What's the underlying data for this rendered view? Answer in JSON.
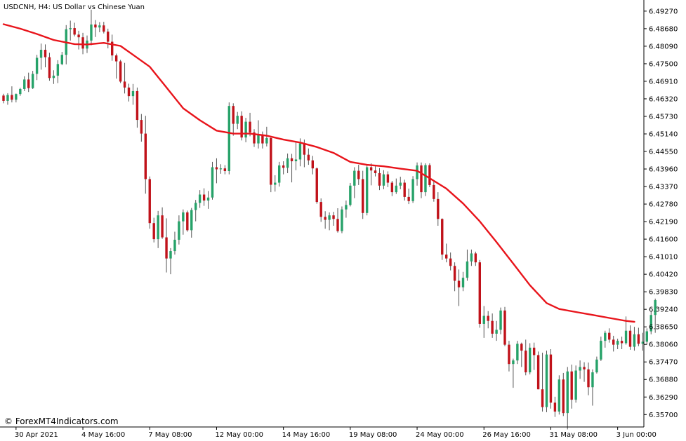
{
  "chart_data": {
    "type": "candlestick",
    "symbol_label": "USDCNH, H4:  US Dollar vs Chinese Yuan",
    "watermark": "© ForexMT4Indicators.com",
    "colors": {
      "bull": "#26a269",
      "bear": "#c0121a",
      "ma": "#e8141b",
      "wick": "#555555",
      "axis": "#000000"
    },
    "ylim": [
      6.354,
      6.4955
    ],
    "y_ticks": [
      "6.49270",
      "6.48680",
      "6.48090",
      "6.47500",
      "6.46910",
      "6.46320",
      "6.45730",
      "6.45140",
      "6.44550",
      "6.43960",
      "6.43370",
      "6.42780",
      "6.42190",
      "6.41600",
      "6.41010",
      "6.40420",
      "6.39830",
      "6.39240",
      "6.38650",
      "6.38060",
      "6.37470",
      "6.36880",
      "6.36290",
      "6.35700"
    ],
    "x_labels": [
      {
        "label": "30 Apr 2021",
        "index": 3
      },
      {
        "label": "4 May 16:00",
        "index": 19
      },
      {
        "label": "7 May 08:00",
        "index": 35
      },
      {
        "label": "12 May 00:00",
        "index": 51
      },
      {
        "label": "14 May 16:00",
        "index": 67
      },
      {
        "label": "19 May 08:00",
        "index": 83
      },
      {
        "label": "24 May 00:00",
        "index": 99
      },
      {
        "label": "26 May 16:00",
        "index": 115
      },
      {
        "label": "31 May 08:00",
        "index": 131
      },
      {
        "label": "3 Jun 00:00",
        "index": 147
      }
    ],
    "candles": [
      [
        6.4643,
        6.4649,
        6.4617,
        6.4625
      ],
      [
        6.4625,
        6.4651,
        6.4612,
        6.4645
      ],
      [
        6.4645,
        6.4674,
        6.462,
        6.4629
      ],
      [
        6.4629,
        6.465,
        6.462,
        6.4648
      ],
      [
        6.4648,
        6.4669,
        6.4642,
        6.4665
      ],
      [
        6.4665,
        6.4708,
        6.4658,
        6.4697
      ],
      [
        6.4697,
        6.472,
        6.4655,
        6.4668
      ],
      [
        6.4668,
        6.4726,
        6.4665,
        6.4716
      ],
      [
        6.4716,
        6.478,
        6.4695,
        6.477
      ],
      [
        6.477,
        6.4818,
        6.473,
        6.4797
      ],
      [
        6.4797,
        6.4815,
        6.4738,
        6.4772
      ],
      [
        6.4772,
        6.4787,
        6.4693,
        6.4702
      ],
      [
        6.4702,
        6.4728,
        6.4682,
        6.471
      ],
      [
        6.471,
        6.4762,
        6.4685,
        6.4749
      ],
      [
        6.4749,
        6.479,
        6.4745,
        6.478
      ],
      [
        6.478,
        6.488,
        6.4748,
        6.4866
      ],
      [
        6.4866,
        6.4895,
        6.4828,
        6.487
      ],
      [
        6.487,
        6.4888,
        6.4842,
        6.4848
      ],
      [
        6.4848,
        6.4861,
        6.4798,
        6.4839
      ],
      [
        6.4839,
        6.4854,
        6.4782,
        6.4801
      ],
      [
        6.4801,
        6.4845,
        6.4786,
        6.4828
      ],
      [
        6.4828,
        6.4932,
        6.4812,
        6.4882
      ],
      [
        6.4882,
        6.4897,
        6.484,
        6.4872
      ],
      [
        6.4872,
        6.489,
        6.4856,
        6.4879
      ],
      [
        6.4879,
        6.4891,
        6.4852,
        6.4858
      ],
      [
        6.4858,
        6.4868,
        6.4802,
        6.4824
      ],
      [
        6.4824,
        6.4848,
        6.476,
        6.4778
      ],
      [
        6.4778,
        6.4784,
        6.47,
        6.4758
      ],
      [
        6.4758,
        6.4763,
        6.4685,
        6.469
      ],
      [
        6.469,
        6.4753,
        6.465,
        6.467
      ],
      [
        6.467,
        6.4683,
        6.4623,
        6.4641
      ],
      [
        6.4641,
        6.4682,
        6.4612,
        6.4658
      ],
      [
        6.4658,
        6.467,
        6.4535,
        6.4561
      ],
      [
        6.4561,
        6.4581,
        6.4488,
        6.4515
      ],
      [
        6.4515,
        6.4575,
        6.4313,
        6.4362
      ],
      [
        6.4362,
        6.4371,
        6.4195,
        6.4214
      ],
      [
        6.4214,
        6.4232,
        6.4149,
        6.416
      ],
      [
        6.416,
        6.4255,
        6.413,
        6.424
      ],
      [
        6.424,
        6.4267,
        6.4161,
        6.4166
      ],
      [
        6.4166,
        6.423,
        6.4048,
        6.4095
      ],
      [
        6.4095,
        6.413,
        6.4042,
        6.412
      ],
      [
        6.412,
        6.4185,
        6.4108,
        6.4158
      ],
      [
        6.4158,
        6.424,
        6.4142,
        6.422
      ],
      [
        6.422,
        6.426,
        6.4175,
        6.425
      ],
      [
        6.425,
        6.4256,
        6.4185,
        6.419
      ],
      [
        6.419,
        6.4265,
        6.4165,
        6.4258
      ],
      [
        6.4258,
        6.4292,
        6.422,
        6.4282
      ],
      [
        6.4282,
        6.4325,
        6.4265,
        6.431
      ],
      [
        6.431,
        6.4331,
        6.4272,
        6.429
      ],
      [
        6.429,
        6.4322,
        6.4262,
        6.43
      ],
      [
        6.43,
        6.442,
        6.4293,
        6.4402
      ],
      [
        6.4402,
        6.4432,
        6.4348,
        6.4395
      ],
      [
        6.4395,
        6.4412,
        6.438,
        6.4398
      ],
      [
        6.4398,
        6.4409,
        6.4378,
        6.4389
      ],
      [
        6.4389,
        6.462,
        6.4378,
        6.4608
      ],
      [
        6.4608,
        6.4617,
        6.4508,
        6.4548
      ],
      [
        6.4548,
        6.4588,
        6.453,
        6.4575
      ],
      [
        6.4575,
        6.459,
        6.4492,
        6.4502
      ],
      [
        6.4502,
        6.4568,
        6.4486,
        6.4555
      ],
      [
        6.4555,
        6.4585,
        6.4506,
        6.4519
      ],
      [
        6.4519,
        6.453,
        6.447,
        6.4482
      ],
      [
        6.4482,
        6.456,
        6.4465,
        6.451
      ],
      [
        6.451,
        6.4522,
        6.4465,
        6.4482
      ],
      [
        6.4482,
        6.4538,
        6.4472,
        6.45
      ],
      [
        6.45,
        6.4502,
        6.4318,
        6.4343
      ],
      [
        6.4343,
        6.4375,
        6.432,
        6.435
      ],
      [
        6.435,
        6.442,
        6.4337,
        6.4408
      ],
      [
        6.4408,
        6.4422,
        6.4378,
        6.44
      ],
      [
        6.44,
        6.4448,
        6.4382,
        6.4432
      ],
      [
        6.4432,
        6.4447,
        6.4351,
        6.4422
      ],
      [
        6.4422,
        6.4488,
        6.4392,
        6.4428
      ],
      [
        6.4428,
        6.4499,
        6.4405,
        6.4482
      ],
      [
        6.4482,
        6.4495,
        6.4402,
        6.4444
      ],
      [
        6.4444,
        6.4465,
        6.441,
        6.4425
      ],
      [
        6.4425,
        6.444,
        6.4378,
        6.4398
      ],
      [
        6.4398,
        6.4401,
        6.4279,
        6.4285
      ],
      [
        6.4285,
        6.4297,
        6.4218,
        6.4235
      ],
      [
        6.4235,
        6.4254,
        6.4195,
        6.4225
      ],
      [
        6.4225,
        6.425,
        6.419,
        6.424
      ],
      [
        6.424,
        6.4252,
        6.4205,
        6.4228
      ],
      [
        6.4228,
        6.4264,
        6.4182,
        6.4187
      ],
      [
        6.4187,
        6.427,
        6.418,
        6.426
      ],
      [
        6.426,
        6.429,
        6.4232,
        6.4275
      ],
      [
        6.4275,
        6.4349,
        6.427,
        6.434
      ],
      [
        6.434,
        6.4402,
        6.4298,
        6.439
      ],
      [
        6.439,
        6.441,
        6.4342,
        6.4362
      ],
      [
        6.4362,
        6.439,
        6.4228,
        6.4248
      ],
      [
        6.4248,
        6.4412,
        6.424,
        6.4402
      ],
      [
        6.4402,
        6.4415,
        6.4341,
        6.4391
      ],
      [
        6.4391,
        6.4405,
        6.4371,
        6.4382
      ],
      [
        6.4382,
        6.4399,
        6.4325,
        6.434
      ],
      [
        6.434,
        6.4392,
        6.4328,
        6.4378
      ],
      [
        6.4378,
        6.4388,
        6.4335,
        6.435
      ],
      [
        6.435,
        6.4356,
        6.4305,
        6.4318
      ],
      [
        6.4318,
        6.4364,
        6.4312,
        6.434
      ],
      [
        6.434,
        6.437,
        6.4328,
        6.435
      ],
      [
        6.435,
        6.436,
        6.429,
        6.4302
      ],
      [
        6.4302,
        6.433,
        6.4278,
        6.4288
      ],
      [
        6.4288,
        6.4372,
        6.4282,
        6.4362
      ],
      [
        6.4362,
        6.4418,
        6.434,
        6.4408
      ],
      [
        6.4408,
        6.4418,
        6.4298,
        6.4318
      ],
      [
        6.4318,
        6.4415,
        6.4305,
        6.4409
      ],
      [
        6.4409,
        6.4415,
        6.4335,
        6.4342
      ],
      [
        6.4342,
        6.4358,
        6.4286,
        6.4295
      ],
      [
        6.4295,
        6.4318,
        6.4205,
        6.4228
      ],
      [
        6.4228,
        6.423,
        6.409,
        6.4108
      ],
      [
        6.4108,
        6.4145,
        6.4082,
        6.4095
      ],
      [
        6.4095,
        6.4115,
        6.4055,
        6.407
      ],
      [
        6.407,
        6.4082,
        6.3985,
        6.402
      ],
      [
        6.402,
        6.4058,
        6.3935,
        6.3998
      ],
      [
        6.3998,
        6.405,
        6.3985,
        6.403
      ],
      [
        6.403,
        6.4125,
        6.402,
        6.4085
      ],
      [
        6.4085,
        6.4125,
        6.407,
        6.4112
      ],
      [
        6.4112,
        6.4118,
        6.407,
        6.4082
      ],
      [
        6.4082,
        6.409,
        6.3862,
        6.3875
      ],
      [
        6.3875,
        6.3935,
        6.3828,
        6.3902
      ],
      [
        6.3902,
        6.3918,
        6.386,
        6.3885
      ],
      [
        6.3885,
        6.391,
        6.3828,
        6.3842
      ],
      [
        6.3842,
        6.3885,
        6.3818,
        6.3855
      ],
      [
        6.3855,
        6.393,
        6.384,
        6.392
      ],
      [
        6.392,
        6.3932,
        6.38,
        6.3805
      ],
      [
        6.3805,
        6.3818,
        6.3715,
        6.374
      ],
      [
        6.374,
        6.3758,
        6.366,
        6.3752
      ],
      [
        6.3752,
        6.3818,
        6.374,
        6.3808
      ],
      [
        6.3808,
        6.3812,
        6.373,
        6.3785
      ],
      [
        6.3785,
        6.3822,
        6.3702,
        6.3712
      ],
      [
        6.3712,
        6.381,
        6.3705,
        6.3795
      ],
      [
        6.3795,
        6.3812,
        6.372,
        6.377
      ],
      [
        6.377,
        6.3782,
        6.3655,
        6.3655
      ],
      [
        6.3655,
        6.3778,
        6.358,
        6.3595
      ],
      [
        6.3595,
        6.3785,
        6.3578,
        6.3772
      ],
      [
        6.3772,
        6.379,
        6.359,
        6.361
      ],
      [
        6.361,
        6.363,
        6.3562,
        6.358
      ],
      [
        6.358,
        6.3702,
        6.357,
        6.3688
      ],
      [
        6.3688,
        6.371,
        6.3565,
        6.3575
      ],
      [
        6.3575,
        6.373,
        6.352,
        6.3715
      ],
      [
        6.3715,
        6.3738,
        6.359,
        6.362
      ],
      [
        6.362,
        6.3735,
        6.361,
        6.3718
      ],
      [
        6.3718,
        6.3752,
        6.369,
        6.373
      ],
      [
        6.373,
        6.3746,
        6.368,
        6.3722
      ],
      [
        6.3722,
        6.3745,
        6.3635,
        6.3662
      ],
      [
        6.3662,
        6.3722,
        6.36,
        6.3712
      ],
      [
        6.3712,
        6.3765,
        6.3708,
        6.3755
      ],
      [
        6.3755,
        6.3832,
        6.375,
        6.3818
      ],
      [
        6.3818,
        6.3852,
        6.3795,
        6.3845
      ],
      [
        6.3845,
        6.386,
        6.3812,
        6.3822
      ],
      [
        6.3822,
        6.3835,
        6.3782,
        6.3805
      ],
      [
        6.3805,
        6.3825,
        6.379,
        6.3818
      ],
      [
        6.3818,
        6.3832,
        6.379,
        6.381
      ],
      [
        6.381,
        6.39,
        6.3805,
        6.3852
      ],
      [
        6.3852,
        6.387,
        6.3788,
        6.3798
      ],
      [
        6.3798,
        6.3865,
        6.3785,
        6.384
      ],
      [
        6.384,
        6.3862,
        6.38,
        6.3808
      ],
      [
        6.3808,
        6.3845,
        6.3785,
        6.3815
      ],
      [
        6.3815,
        6.386,
        6.3805,
        6.385
      ],
      [
        6.385,
        6.3918,
        6.384,
        6.3905
      ],
      [
        6.3905,
        6.396,
        6.3845,
        6.3955
      ]
    ],
    "ma_line": [
      [
        0,
        6.4883
      ],
      [
        4,
        6.4868
      ],
      [
        8,
        6.485
      ],
      [
        12,
        6.483
      ],
      [
        17,
        6.4816
      ],
      [
        20,
        6.4815
      ],
      [
        24,
        6.482
      ],
      [
        28,
        6.481
      ],
      [
        31,
        6.478
      ],
      [
        35,
        6.474
      ],
      [
        39,
        6.467
      ],
      [
        43,
        6.46
      ],
      [
        47,
        6.456
      ],
      [
        51,
        6.4525
      ],
      [
        55,
        6.4515
      ],
      [
        59,
        6.4515
      ],
      [
        63,
        6.4508
      ],
      [
        67,
        6.4495
      ],
      [
        71,
        6.4485
      ],
      [
        75,
        6.447
      ],
      [
        79,
        6.445
      ],
      [
        83,
        6.442
      ],
      [
        87,
        6.441
      ],
      [
        91,
        6.4405
      ],
      [
        95,
        6.4397
      ],
      [
        99,
        6.439
      ],
      [
        102,
        6.4365
      ],
      [
        106,
        6.433
      ],
      [
        110,
        6.428
      ],
      [
        114,
        6.422
      ],
      [
        118,
        6.415
      ],
      [
        122,
        6.4078
      ],
      [
        126,
        6.4005
      ],
      [
        130,
        6.3945
      ],
      [
        133,
        6.3925
      ],
      [
        137,
        6.3915
      ],
      [
        141,
        6.3905
      ],
      [
        145,
        6.3895
      ],
      [
        149,
        6.3885
      ],
      [
        151,
        6.3882
      ]
    ]
  }
}
